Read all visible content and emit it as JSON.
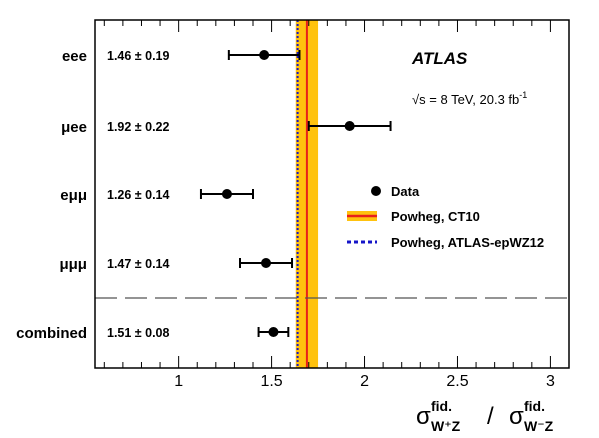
{
  "chart_data": {
    "type": "scatter",
    "orientation": "horizontal-errorbar",
    "experiment_label": "ATLAS",
    "energy_label": {
      "sqrt": "√",
      "s_eq": "s = 8 TeV, 20.3 fb",
      "exp": "-1"
    },
    "xlabel": {
      "sigma": "σ",
      "fid": "fid.",
      "num_sub": "W⁺Z",
      "slash": "/",
      "den_sub": "W⁻Z"
    },
    "xlim": [
      0.55,
      3.1
    ],
    "x_ticks": [
      1,
      1.5,
      2,
      2.5,
      3
    ],
    "x_tick_labels": [
      "1",
      "1.5",
      "2",
      "2.5",
      "3"
    ],
    "points": [
      {
        "label": "eee",
        "value": 1.46,
        "error": 0.19,
        "text": "1.46 ± 0.19"
      },
      {
        "label": "μee",
        "value": 1.92,
        "error": 0.22,
        "text": "1.92 ± 0.22"
      },
      {
        "label": "eμμ",
        "value": 1.26,
        "error": 0.14,
        "text": "1.26 ± 0.14"
      },
      {
        "label": "μμμ",
        "value": 1.47,
        "error": 0.14,
        "text": "1.47 ± 0.14"
      },
      {
        "label": "combined",
        "value": 1.51,
        "error": 0.08,
        "text": "1.51 ± 0.08"
      }
    ],
    "theory": [
      {
        "name": "Powheg, CT10",
        "central": 1.69,
        "band": [
          1.63,
          1.75
        ],
        "line_color": "#e8201a",
        "band_color": "#ffc20e"
      },
      {
        "name": "Powheg, ATLAS-epWZ12",
        "central": 1.64,
        "line_color": "#1515c8",
        "style": "dotted"
      }
    ],
    "legend": [
      {
        "name": "Data",
        "marker": "circle"
      },
      {
        "name": "Powheg, CT10",
        "marker": "band-line"
      },
      {
        "name": "Powheg, ATLAS-epWZ12",
        "marker": "dotted-line"
      }
    ],
    "legend_position": "center-right",
    "grid": false
  }
}
